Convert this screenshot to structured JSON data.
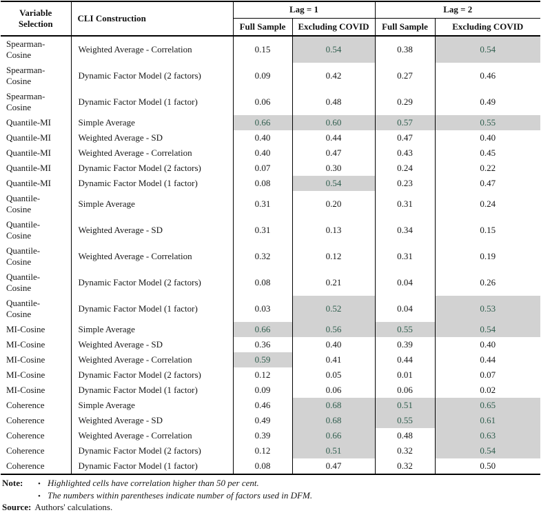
{
  "table": {
    "header": {
      "variable_selection": "Variable Selection",
      "cli_construction": "CLI Construction",
      "lag1": "Lag = 1",
      "lag2": "Lag = 2",
      "full_sample": "Full Sample",
      "excluding_covid": "Excluding COVID"
    },
    "rows": [
      {
        "variable": "Spearman-\nCosine",
        "construction": "Weighted Average - Correlation",
        "values": [
          "0.15",
          "0.54",
          "0.38",
          "0.54"
        ],
        "highlight": [
          false,
          true,
          false,
          true
        ]
      },
      {
        "variable": "Spearman-\nCosine",
        "construction": "Dynamic Factor Model (2 factors)",
        "values": [
          "0.09",
          "0.42",
          "0.27",
          "0.46"
        ],
        "highlight": [
          false,
          false,
          false,
          false
        ]
      },
      {
        "variable": "Spearman-\nCosine",
        "construction": "Dynamic Factor Model (1 factor)",
        "values": [
          "0.06",
          "0.48",
          "0.29",
          "0.49"
        ],
        "highlight": [
          false,
          false,
          false,
          false
        ]
      },
      {
        "variable": "Quantile-MI",
        "construction": "Simple Average",
        "values": [
          "0.66",
          "0.60",
          "0.57",
          "0.55"
        ],
        "highlight": [
          true,
          true,
          true,
          true
        ]
      },
      {
        "variable": "Quantile-MI",
        "construction": "Weighted Average - SD",
        "values": [
          "0.40",
          "0.44",
          "0.47",
          "0.40"
        ],
        "highlight": [
          false,
          false,
          false,
          false
        ]
      },
      {
        "variable": "Quantile-MI",
        "construction": "Weighted Average - Correlation",
        "values": [
          "0.40",
          "0.47",
          "0.43",
          "0.45"
        ],
        "highlight": [
          false,
          false,
          false,
          false
        ]
      },
      {
        "variable": "Quantile-MI",
        "construction": "Dynamic Factor Model (2 factors)",
        "values": [
          "0.07",
          "0.30",
          "0.24",
          "0.22"
        ],
        "highlight": [
          false,
          false,
          false,
          false
        ]
      },
      {
        "variable": "Quantile-MI",
        "construction": "Dynamic Factor Model (1 factor)",
        "values": [
          "0.08",
          "0.54",
          "0.23",
          "0.47"
        ],
        "highlight": [
          false,
          true,
          false,
          false
        ]
      },
      {
        "variable": "Quantile-\nCosine",
        "construction": "Simple Average",
        "values": [
          "0.31",
          "0.20",
          "0.31",
          "0.24"
        ],
        "highlight": [
          false,
          false,
          false,
          false
        ]
      },
      {
        "variable": "Quantile-\nCosine",
        "construction": "Weighted Average - SD",
        "values": [
          "0.31",
          "0.13",
          "0.34",
          "0.15"
        ],
        "highlight": [
          false,
          false,
          false,
          false
        ]
      },
      {
        "variable": "Quantile-\nCosine",
        "construction": "Weighted Average - Correlation",
        "values": [
          "0.32",
          "0.12",
          "0.31",
          "0.19"
        ],
        "highlight": [
          false,
          false,
          false,
          false
        ]
      },
      {
        "variable": "Quantile-\nCosine",
        "construction": "Dynamic Factor Model (2 factors)",
        "values": [
          "0.08",
          "0.21",
          "0.04",
          "0.26"
        ],
        "highlight": [
          false,
          false,
          false,
          false
        ]
      },
      {
        "variable": "Quantile-\nCosine",
        "construction": "Dynamic Factor Model (1 factor)",
        "values": [
          "0.03",
          "0.52",
          "0.04",
          "0.53"
        ],
        "highlight": [
          false,
          true,
          false,
          true
        ]
      },
      {
        "variable": "MI-Cosine",
        "construction": "Simple Average",
        "values": [
          "0.66",
          "0.56",
          "0.55",
          "0.54"
        ],
        "highlight": [
          true,
          true,
          true,
          true
        ]
      },
      {
        "variable": "MI-Cosine",
        "construction": "Weighted Average - SD",
        "values": [
          "0.36",
          "0.40",
          "0.39",
          "0.40"
        ],
        "highlight": [
          false,
          false,
          false,
          false
        ]
      },
      {
        "variable": "MI-Cosine",
        "construction": "Weighted Average - Correlation",
        "values": [
          "0.59",
          "0.41",
          "0.44",
          "0.44"
        ],
        "highlight": [
          true,
          false,
          false,
          false
        ]
      },
      {
        "variable": "MI-Cosine",
        "construction": "Dynamic Factor Model (2 factors)",
        "values": [
          "0.12",
          "0.05",
          "0.01",
          "0.07"
        ],
        "highlight": [
          false,
          false,
          false,
          false
        ]
      },
      {
        "variable": "MI-Cosine",
        "construction": "Dynamic Factor Model (1 factor)",
        "values": [
          "0.09",
          "0.06",
          "0.06",
          "0.02"
        ],
        "highlight": [
          false,
          false,
          false,
          false
        ]
      },
      {
        "variable": "Coherence",
        "construction": "Simple Average",
        "values": [
          "0.46",
          "0.68",
          "0.51",
          "0.65"
        ],
        "highlight": [
          false,
          true,
          true,
          true
        ]
      },
      {
        "variable": "Coherence",
        "construction": "Weighted Average - SD",
        "values": [
          "0.49",
          "0.68",
          "0.55",
          "0.61"
        ],
        "highlight": [
          false,
          true,
          true,
          true
        ]
      },
      {
        "variable": "Coherence",
        "construction": "Weighted Average - Correlation",
        "values": [
          "0.39",
          "0.66",
          "0.48",
          "0.63"
        ],
        "highlight": [
          false,
          true,
          false,
          true
        ]
      },
      {
        "variable": "Coherence",
        "construction": "Dynamic Factor Model (2 factors)",
        "values": [
          "0.12",
          "0.51",
          "0.32",
          "0.54"
        ],
        "highlight": [
          false,
          true,
          false,
          true
        ]
      },
      {
        "variable": "Coherence",
        "construction": "Dynamic Factor Model (1 factor)",
        "values": [
          "0.08",
          "0.47",
          "0.32",
          "0.50"
        ],
        "highlight": [
          false,
          false,
          false,
          false
        ]
      }
    ]
  },
  "notes": {
    "note_label": "Note:",
    "bullet": "•",
    "items": [
      "Highlighted cells have correlation higher than 50 per cent.",
      "The numbers within parentheses indicate number of factors used in DFM."
    ],
    "source_label": "Source:",
    "source_text": "Authors' calculations."
  },
  "colors": {
    "highlight_bg": "#d2d2d2",
    "highlight_text": "#2f5d4d"
  }
}
